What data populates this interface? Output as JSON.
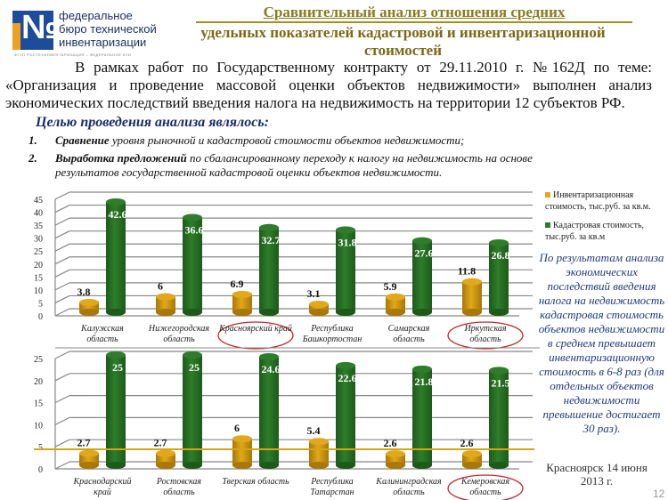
{
  "logo": {
    "line1": "федеральное",
    "line2": "бюро технической",
    "line3": "инвентаризации",
    "glyph": "№",
    "subtitle": "ФГУП РОСТЕХИНВЕНТАРИЗАЦИЯ – ФЕДЕРАЛЬНОЕ БТИ"
  },
  "header": {
    "title_line1": "Сравнительный анализ отношения средних",
    "title_line2": "удельных показателей кадастровой и инвентаризационной  стоимостей"
  },
  "intro": "В рамках работ по Государственному контракту от 29.11.2010 г. №162Д по теме: «Организация и проведение массовой оценки объектов недвижимости» выполнен анализ экономических последствий введения налога на недвижимость на территории 12 субъектов РФ.",
  "goal": "Целью проведения анализа являлось:",
  "items": [
    {
      "num": "1.",
      "bold": "Сравнение",
      "text": " уровня рыночной и кадастровой стоимости объектов недвижимости;"
    },
    {
      "num": "2.",
      "bold": "Выработка предложений",
      "text": " по сбалансированному переходу к налогу на недвижимость на основе результатов государственной кадастровой оценки объектов недвижимости."
    }
  ],
  "legend": [
    {
      "label": "Инвентаризационная стоимость, тыс.руб. за кв.м.",
      "color": "#e0a81a"
    },
    {
      "label": "Кадастровая стоимость, тыс.руб. за кв.м",
      "color": "#2e7d2a"
    }
  ],
  "sidenote": "По результатам анализа экономических последствий введения налога на недвижимость кадастровая стоимость объектов недвижимости в среднем превышает инвентаризационную стоимость в 6-8 раз (для отдельных объектов недвижимости превышение достигает 30 раз).",
  "footer": "Красноярск 14 июня 2013 г.",
  "page_number": "12",
  "chart_data": [
    {
      "type": "bar",
      "categories": [
        "Калужская область",
        "Нижегородская область",
        "Красноярский край",
        "Республика Башкортостан",
        "Самарская область",
        "Иркутская область"
      ],
      "highlighted": [
        "Красноярский край",
        "Иркутская область"
      ],
      "series": [
        {
          "name": "Инвентаризационная стоимость, тыс.руб. за кв.м.",
          "values": [
            3.8,
            6,
            6.9,
            3.1,
            5.9,
            11.8
          ]
        },
        {
          "name": "Кадастровая стоимость, тыс.руб. за кв.м",
          "values": [
            42.6,
            36.6,
            32.7,
            31.8,
            27.6,
            26.8
          ]
        }
      ],
      "yticks": [
        0,
        5,
        10,
        15,
        20,
        25,
        30,
        35,
        40,
        45
      ],
      "ylim": [
        0,
        45
      ],
      "grid": true,
      "legend": "right"
    },
    {
      "type": "bar",
      "categories": [
        "Краснодарский край",
        "Ростовская область",
        "Тверская область",
        "Республика Татарстан",
        "Калининградская область",
        "Кемеровская область"
      ],
      "highlighted": [
        "Кемеровская область"
      ],
      "series": [
        {
          "name": "Инвентаризационная стоимость, тыс.руб. за кв.м.",
          "values": [
            2.7,
            2.7,
            6,
            5.4,
            2.6,
            2.6
          ]
        },
        {
          "name": "Кадастровая стоимость, тыс.руб. за кв.м",
          "values": [
            25,
            25,
            24.6,
            22.6,
            21.8,
            21.5
          ]
        }
      ],
      "yticks": [
        0,
        5,
        10,
        15,
        20,
        25
      ],
      "ylim": [
        0,
        25
      ],
      "grid": true
    }
  ]
}
